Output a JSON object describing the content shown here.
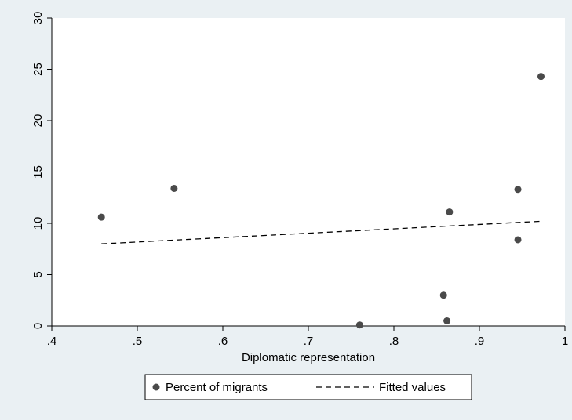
{
  "chart_data": {
    "type": "scatter",
    "title": "",
    "xlabel": "Diplomatic representation",
    "ylabel": "",
    "xlim": [
      0.4,
      1.0
    ],
    "ylim": [
      0,
      30
    ],
    "xticks": [
      {
        "value": 0.4,
        "label": ".4"
      },
      {
        "value": 0.5,
        "label": ".5"
      },
      {
        "value": 0.6,
        "label": ".6"
      },
      {
        "value": 0.7,
        "label": ".7"
      },
      {
        "value": 0.8,
        "label": ".8"
      },
      {
        "value": 0.9,
        "label": ".9"
      },
      {
        "value": 1.0,
        "label": "1"
      }
    ],
    "yticks": [
      {
        "value": 0,
        "label": "0"
      },
      {
        "value": 5,
        "label": "5"
      },
      {
        "value": 10,
        "label": "10"
      },
      {
        "value": 15,
        "label": "15"
      },
      {
        "value": 20,
        "label": "20"
      },
      {
        "value": 25,
        "label": "25"
      },
      {
        "value": 30,
        "label": "30"
      }
    ],
    "grid": false,
    "legend_position": "bottom",
    "series": [
      {
        "name": "Percent of migrants",
        "kind": "scatter",
        "color": "#4a4a4a",
        "points": [
          {
            "x": 0.458,
            "y": 10.6
          },
          {
            "x": 0.543,
            "y": 13.4
          },
          {
            "x": 0.76,
            "y": 0.1
          },
          {
            "x": 0.858,
            "y": 3.0
          },
          {
            "x": 0.862,
            "y": 0.5
          },
          {
            "x": 0.865,
            "y": 11.1
          },
          {
            "x": 0.945,
            "y": 13.3
          },
          {
            "x": 0.945,
            "y": 8.4
          },
          {
            "x": 0.972,
            "y": 24.3
          }
        ]
      },
      {
        "name": "Fitted values",
        "kind": "line",
        "style": "dashed",
        "color": "#000000",
        "points": [
          {
            "x": 0.458,
            "y": 8.0
          },
          {
            "x": 0.972,
            "y": 10.2
          }
        ]
      }
    ]
  }
}
